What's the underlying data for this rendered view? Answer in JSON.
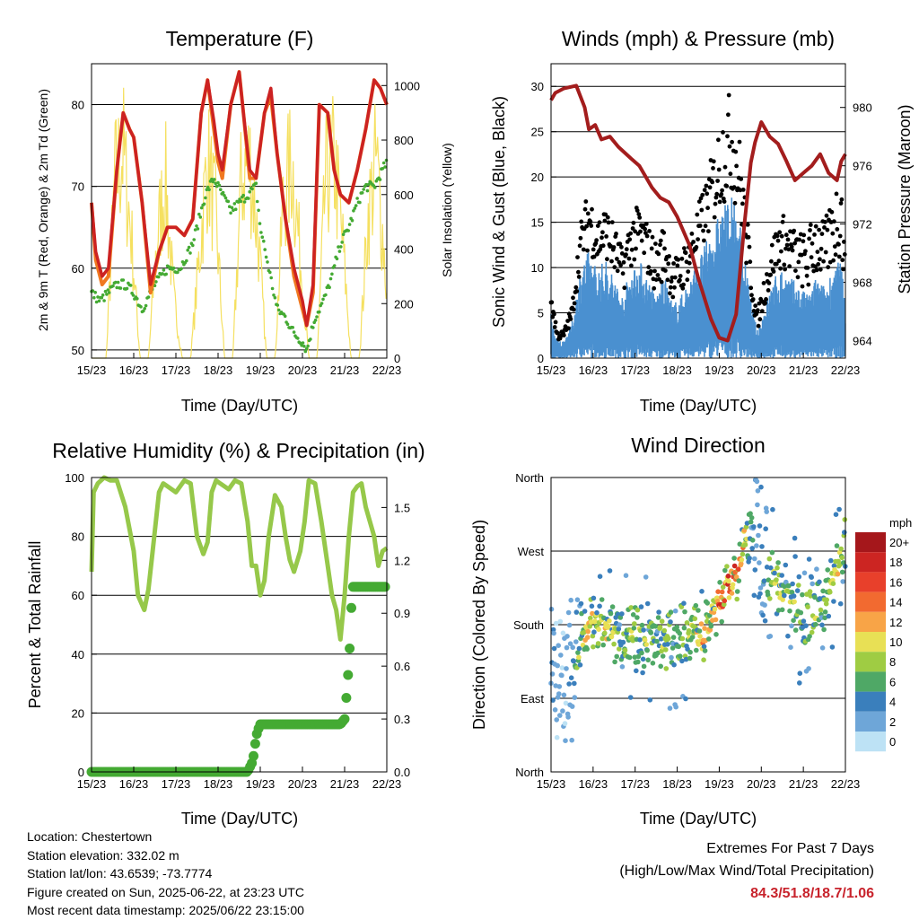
{
  "x_ticks": [
    "15/23",
    "16/23",
    "17/23",
    "18/23",
    "19/23",
    "20/23",
    "21/23",
    "22/23"
  ],
  "colors": {
    "temp2m": "#cc2222",
    "temp9m": "#f07820",
    "dewpoint": "#44aa33",
    "solar": "#f5e060",
    "wind": "#4a90d0",
    "gust": "#000000",
    "pressure": "#a31d1d",
    "rh": "#96c84a",
    "precip": "#44aa33"
  },
  "speed_scale": {
    "unit": "mph",
    "labels": [
      "20+",
      "18",
      "16",
      "14",
      "12",
      "10",
      "8",
      "6",
      "4",
      "2",
      "0"
    ],
    "colors": [
      "#a5171b",
      "#cc2522",
      "#e8402b",
      "#f26a30",
      "#f8a447",
      "#e8e055",
      "#9fcc43",
      "#4fa866",
      "#3a7fbc",
      "#6ea6d8",
      "#bde2f5"
    ]
  },
  "chart_data": [
    {
      "type": "line",
      "title": "Temperature (F)",
      "xlabel": "Time (Day/UTC)",
      "ylabel": "2m & 9m T (Red, Orange) & 2m Td (Green)",
      "y2label": "Solar Insolation (Yellow)",
      "ylim": [
        49,
        85
      ],
      "y2lim": [
        0,
        1080
      ],
      "yticks": [
        50,
        60,
        70,
        80
      ],
      "y2ticks": [
        0,
        200,
        400,
        600,
        800,
        1000
      ],
      "xlim": [
        0,
        7
      ],
      "series": [
        {
          "axis": "y",
          "x": [
            0,
            0.1,
            0.25,
            0.4,
            0.6,
            0.75,
            0.9,
            1.0,
            1.2,
            1.4,
            1.6,
            1.8,
            2.0,
            2.2,
            2.4,
            2.6,
            2.75,
            2.9,
            3.0,
            3.1,
            3.3,
            3.5,
            3.6,
            3.75,
            3.9,
            4.1,
            4.25,
            4.4,
            4.6,
            4.8,
            5.0,
            5.1,
            5.25,
            5.4,
            5.6,
            5.75,
            5.9,
            6.1,
            6.3,
            6.5,
            6.7,
            6.85,
            7.0
          ],
          "y": [
            68,
            62,
            59,
            60,
            72,
            79,
            77,
            76,
            68,
            58,
            62,
            65,
            65,
            64,
            66,
            79,
            83,
            78,
            74,
            72,
            80,
            84,
            79,
            72,
            71,
            79,
            82,
            74,
            66,
            60,
            56,
            53,
            58,
            80,
            79,
            72,
            69,
            68,
            72,
            77,
            83,
            82,
            80
          ]
        },
        {
          "axis": "y",
          "x": [
            0,
            0.1,
            0.25,
            0.4,
            0.6,
            0.75,
            0.9,
            1.0,
            1.2,
            1.4,
            1.6,
            1.8,
            2.0,
            2.2,
            2.4,
            2.6,
            2.75,
            2.9,
            3.0,
            3.1,
            3.3,
            3.5,
            3.6,
            3.75,
            3.9,
            4.1,
            4.25,
            4.4,
            4.6,
            4.8,
            5.0,
            5.1,
            5.25,
            5.4,
            5.6,
            5.75,
            5.9,
            6.1,
            6.3,
            6.5,
            6.7,
            6.85,
            7.0
          ],
          "y": [
            68,
            61,
            58,
            59,
            72,
            79,
            77,
            76,
            68,
            57,
            62,
            65,
            65,
            64,
            66,
            79,
            83,
            77,
            73,
            71,
            80,
            84,
            79,
            71,
            71,
            79,
            81,
            74,
            66,
            59,
            55,
            53,
            57,
            80,
            79,
            72,
            69,
            68,
            72,
            77,
            83,
            82,
            80
          ]
        },
        {
          "axis": "y",
          "x": [
            0,
            0.2,
            0.4,
            0.6,
            0.8,
            1.0,
            1.2,
            1.5,
            1.8,
            2.1,
            2.4,
            2.7,
            2.9,
            3.1,
            3.3,
            3.5,
            3.7,
            3.9,
            4.0,
            4.2,
            4.4,
            4.6,
            4.8,
            5.0,
            5.1,
            5.3,
            5.5,
            5.7,
            5.9,
            6.1,
            6.3,
            6.5,
            6.7,
            6.9,
            7.0
          ],
          "y": [
            57,
            56,
            57,
            58,
            58,
            57,
            55,
            58,
            60,
            60,
            63,
            69,
            71,
            69,
            67,
            68,
            69,
            70,
            65,
            60,
            55,
            54,
            52,
            51,
            50,
            54,
            56,
            59,
            63,
            65,
            68,
            70,
            70,
            72,
            73
          ]
        },
        {
          "axis": "y2",
          "x": [
            0,
            0.35,
            0.55,
            0.75,
            0.95,
            1.15,
            1.35,
            1.55,
            1.75,
            1.95,
            2.15,
            2.35,
            2.55,
            2.75,
            2.95,
            3.15,
            3.35,
            3.55,
            3.75,
            3.95,
            4.15,
            4.35,
            4.55,
            4.75,
            4.95,
            5.15,
            5.35,
            5.55,
            5.75,
            5.95,
            6.15,
            6.35,
            6.55,
            6.75,
            6.95,
            7.0
          ],
          "y": [
            0,
            0,
            900,
            1050,
            600,
            0,
            0,
            600,
            900,
            300,
            0,
            0,
            500,
            1000,
            700,
            0,
            0,
            900,
            1000,
            600,
            0,
            0,
            800,
            1000,
            500,
            0,
            0,
            900,
            1000,
            600,
            0,
            0,
            700,
            1000,
            500,
            300
          ]
        }
      ]
    },
    {
      "type": "scatter",
      "title": "Winds (mph) & Pressure (mb)",
      "xlabel": "Time (Day/UTC)",
      "ylabel": "Sonic Wind & Gust (Blue, Black)",
      "y2label": "Station Pressure (Maroon)",
      "ylim": [
        0,
        32.5
      ],
      "y2lim": [
        962.8,
        983.0
      ],
      "yticks": [
        0,
        5,
        10,
        15,
        20,
        25,
        30
      ],
      "y2ticks": [
        964,
        968,
        972,
        976,
        980
      ],
      "xlim": [
        0,
        7
      ],
      "wind_envelope": {
        "x": [
          0,
          0.15,
          0.3,
          0.5,
          0.7,
          0.9,
          1.1,
          1.3,
          1.5,
          1.7,
          1.9,
          2.1,
          2.3,
          2.5,
          2.7,
          2.9,
          3.1,
          3.3,
          3.5,
          3.7,
          3.9,
          4.1,
          4.3,
          4.5,
          4.7,
          4.9,
          5.1,
          5.3,
          5.5,
          5.7,
          5.9,
          6.1,
          6.3,
          6.5,
          6.7,
          6.9,
          7.0
        ],
        "y": [
          5,
          2,
          2,
          4,
          10,
          12,
          10,
          11,
          9,
          7,
          10,
          11,
          9,
          7,
          9,
          6,
          7,
          9,
          11,
          13,
          15,
          17,
          18,
          15,
          8,
          3,
          6,
          9,
          10,
          9,
          8,
          7,
          9,
          8,
          10,
          11,
          6
        ]
      },
      "gust_envelope": {
        "x": [
          0,
          0.15,
          0.3,
          0.5,
          0.7,
          0.9,
          1.1,
          1.3,
          1.5,
          1.7,
          1.9,
          2.1,
          2.3,
          2.5,
          2.7,
          2.9,
          3.1,
          3.3,
          3.5,
          3.7,
          3.9,
          4.1,
          4.3,
          4.5,
          4.7,
          4.9,
          5.1,
          5.3,
          5.5,
          5.7,
          5.9,
          6.1,
          6.3,
          6.5,
          6.7,
          6.9,
          7.0
        ],
        "y": [
          8,
          3,
          3,
          6,
          15,
          19,
          16,
          17,
          15,
          12,
          16,
          17,
          15,
          13,
          15,
          11,
          12,
          14,
          17,
          20,
          24,
          28,
          30,
          24,
          14,
          5,
          10,
          14,
          16,
          15,
          14,
          14,
          17,
          15,
          18,
          22,
          10
        ]
      },
      "pressure": {
        "x": [
          0,
          0.1,
          0.3,
          0.6,
          0.8,
          0.9,
          1.05,
          1.2,
          1.4,
          1.6,
          1.9,
          2.1,
          2.4,
          2.6,
          2.8,
          3.0,
          3.3,
          3.5,
          3.8,
          4.0,
          4.2,
          4.4,
          4.6,
          4.75,
          4.85,
          5.0,
          5.2,
          5.4,
          5.6,
          5.8,
          6.0,
          6.2,
          6.4,
          6.6,
          6.8,
          6.9,
          7.0
        ],
        "y": [
          980.5,
          981,
          981.3,
          981.5,
          980,
          978.5,
          978.8,
          977.8,
          978.0,
          977.3,
          976.5,
          976.0,
          974.5,
          973.8,
          973.5,
          972.5,
          970.5,
          968.3,
          965.5,
          964.2,
          964.0,
          965.8,
          972.0,
          976.2,
          977.6,
          979.0,
          978.0,
          977.5,
          976.3,
          975.0,
          975.5,
          976.0,
          976.8,
          975.5,
          975.0,
          976.3,
          976.8
        ]
      }
    },
    {
      "type": "line",
      "title": "Relative Humidity (%) & Precipitation (in)",
      "xlabel": "Time (Day/UTC)",
      "ylabel": "Percent & Total Rainfall",
      "ylim": [
        0,
        100
      ],
      "y2lim": [
        0,
        1.67
      ],
      "yticks": [
        0,
        20,
        40,
        60,
        80,
        100
      ],
      "y2ticks": [
        0.0,
        0.3,
        0.6,
        0.9,
        1.2,
        1.5
      ],
      "xlim": [
        0,
        7
      ],
      "series": [
        {
          "name": "rh",
          "axis": "y",
          "x": [
            0,
            0.05,
            0.15,
            0.3,
            0.45,
            0.6,
            0.8,
            1.0,
            1.1,
            1.25,
            1.35,
            1.45,
            1.6,
            1.7,
            1.8,
            2.0,
            2.2,
            2.35,
            2.5,
            2.65,
            2.75,
            2.85,
            2.95,
            3.05,
            3.25,
            3.4,
            3.55,
            3.7,
            3.8,
            3.9,
            4.0,
            4.1,
            4.2,
            4.35,
            4.5,
            4.6,
            4.7,
            4.8,
            4.95,
            5.05,
            5.15,
            5.3,
            5.45,
            5.6,
            5.7,
            5.8,
            5.9,
            6.0,
            6.1,
            6.2,
            6.3,
            6.4,
            6.5,
            6.6,
            6.7,
            6.8,
            6.9,
            7.0
          ],
          "y": [
            68,
            95,
            98,
            100,
            99,
            99,
            90,
            75,
            60,
            55,
            62,
            75,
            95,
            98,
            97,
            95,
            99,
            98,
            80,
            74,
            78,
            95,
            99,
            98,
            96,
            99,
            98,
            85,
            70,
            70,
            60,
            65,
            80,
            94,
            90,
            80,
            72,
            68,
            75,
            85,
            99,
            98,
            85,
            70,
            60,
            55,
            45,
            60,
            80,
            95,
            97,
            98,
            90,
            85,
            80,
            70,
            75,
            76
          ]
        },
        {
          "name": "precip",
          "axis": "y2",
          "x": [
            0,
            1,
            2,
            3,
            3.7,
            3.8,
            3.85,
            3.9,
            3.95,
            4.0,
            4.5,
            5.0,
            5.5,
            5.9,
            6.0,
            6.05,
            6.08,
            6.12,
            6.15,
            6.2,
            6.25,
            6.3,
            6.5,
            7.0
          ],
          "y": [
            0,
            0,
            0,
            0,
            0,
            0.05,
            0.1,
            0.2,
            0.24,
            0.27,
            0.27,
            0.27,
            0.27,
            0.27,
            0.3,
            0.45,
            0.55,
            0.7,
            0.9,
            1.05,
            1.05,
            1.05,
            1.05,
            1.05
          ]
        }
      ]
    },
    {
      "type": "scatter",
      "title": "Wind Direction",
      "xlabel": "Time (Day/UTC)",
      "ylabel": "Direction (Colored By Speed)",
      "y_categories": [
        "North",
        "East",
        "South",
        "West",
        "North"
      ],
      "ylim": [
        0,
        360
      ],
      "xlim": [
        0,
        7
      ],
      "direction_trend": {
        "x": [
          0,
          0.2,
          0.4,
          0.6,
          0.8,
          1.0,
          1.3,
          1.6,
          1.9,
          2.2,
          2.5,
          2.8,
          3.1,
          3.4,
          3.6,
          3.8,
          4.0,
          4.2,
          4.4,
          4.6,
          4.8,
          5.0,
          5.2,
          5.4,
          5.6,
          5.8,
          6.0,
          6.2,
          6.4,
          6.6,
          6.8,
          7.0
        ],
        "y": [
          160,
          120,
          110,
          140,
          170,
          180,
          175,
          165,
          170,
          160,
          165,
          160,
          170,
          175,
          165,
          185,
          210,
          225,
          240,
          285,
          295,
          280,
          240,
          230,
          220,
          200,
          195,
          185,
          200,
          220,
          250,
          280
        ]
      }
    }
  ],
  "info": {
    "location": "Location: Chestertown",
    "elevation": "Station elevation: 332.02 m",
    "latlon": "Station lat/lon: 43.6539; -73.7774",
    "created": "Figure created on Sun, 2025-06-22, at 23:23 UTC",
    "latest": "Most recent data timestamp: 2025/06/22 23:15:00"
  },
  "extremes": {
    "line1": "Extremes For Past 7 Days",
    "line2": "(High/Low/Max Wind/Total Precipitation)",
    "values": "84.3/51.8/18.7/1.06"
  }
}
